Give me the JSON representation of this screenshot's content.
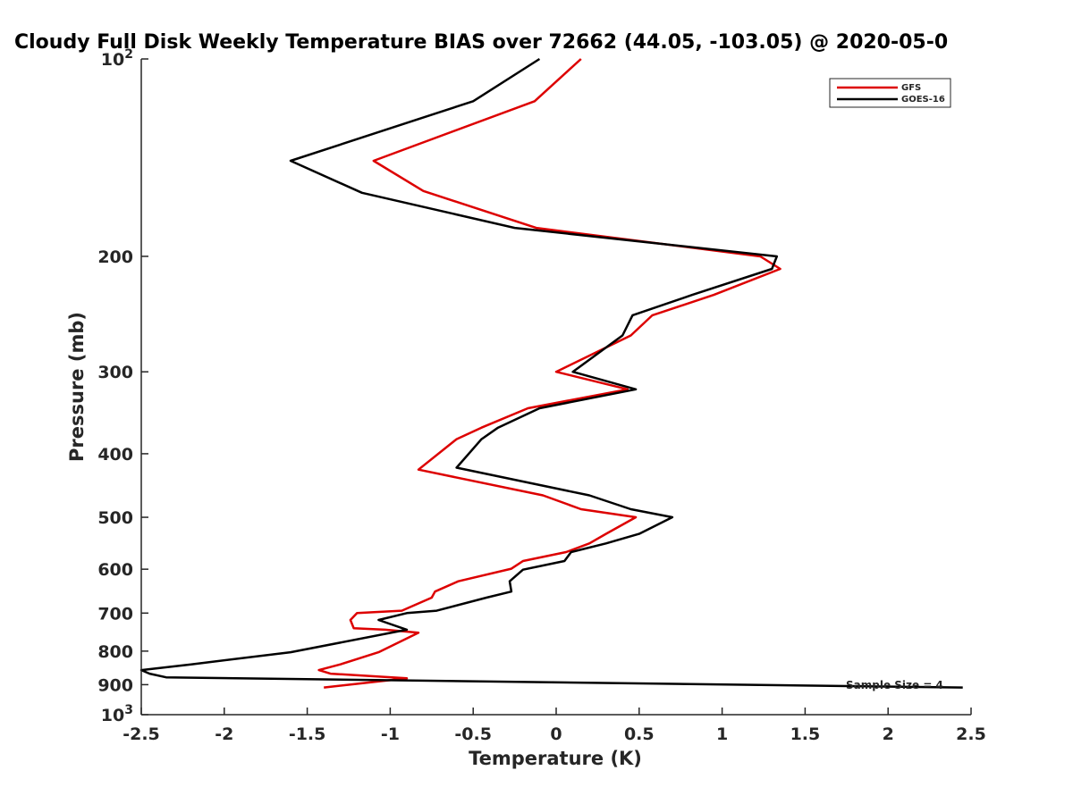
{
  "chart_data": {
    "type": "line",
    "title": "Cloudy Full Disk Weekly Temperature BIAS over 72662 (44.05, -103.05) @ 2020-05-0",
    "xlabel": "Temperature (K)",
    "ylabel": "Pressure (mb)",
    "xlim": [
      -2.5,
      2.5
    ],
    "ylim": [
      100,
      1000
    ],
    "y_scale": "log",
    "y_reversed": true,
    "grid": false,
    "legend_position": "top-right",
    "x_ticks": [
      "-2.5",
      "-2",
      "-1.5",
      "-1",
      "-0.5",
      "0",
      "0.5",
      "1",
      "1.5",
      "2",
      "2.5"
    ],
    "x_tick_values": [
      -2.5,
      -2,
      -1.5,
      -1,
      -0.5,
      0,
      0.5,
      1,
      1.5,
      2,
      2.5
    ],
    "y_ticks": [
      {
        "value": 100,
        "base": "10",
        "exp": "2"
      },
      {
        "value": 200,
        "label": "200"
      },
      {
        "value": 300,
        "label": "300"
      },
      {
        "value": 400,
        "label": "400"
      },
      {
        "value": 500,
        "label": "500"
      },
      {
        "value": 600,
        "label": "600"
      },
      {
        "value": 700,
        "label": "700"
      },
      {
        "value": 800,
        "label": "800"
      },
      {
        "value": 900,
        "label": "900"
      },
      {
        "value": 1000,
        "base": "10",
        "exp": "3"
      }
    ],
    "annotation": "Sample Size = 4",
    "series": [
      {
        "name": "GFS",
        "color": "#dd0000",
        "points": [
          [
            0.15,
            100
          ],
          [
            -0.13,
            116
          ],
          [
            -1.1,
            143
          ],
          [
            -0.8,
            159
          ],
          [
            -0.12,
            181
          ],
          [
            1.23,
            200
          ],
          [
            1.35,
            209
          ],
          [
            0.95,
            229
          ],
          [
            0.58,
            246
          ],
          [
            0.45,
            264
          ],
          [
            0.0,
            300
          ],
          [
            0.43,
            319
          ],
          [
            -0.17,
            341
          ],
          [
            -0.45,
            365
          ],
          [
            -0.6,
            380
          ],
          [
            -0.83,
            423
          ],
          [
            -0.08,
            463
          ],
          [
            0.15,
            486
          ],
          [
            0.48,
            500
          ],
          [
            0.3,
            530
          ],
          [
            0.2,
            548
          ],
          [
            0.06,
            565
          ],
          [
            -0.2,
            583
          ],
          [
            -0.27,
            599
          ],
          [
            -0.59,
            626
          ],
          [
            -0.73,
            649
          ],
          [
            -0.75,
            663
          ],
          [
            -0.93,
            694
          ],
          [
            -1.2,
            700
          ],
          [
            -1.24,
            717
          ],
          [
            -1.22,
            738
          ],
          [
            -1.03,
            742
          ],
          [
            -0.83,
            750
          ],
          [
            -1.07,
            803
          ],
          [
            -1.3,
            838
          ],
          [
            -1.43,
            855
          ],
          [
            -1.36,
            866
          ],
          [
            -0.9,
            880
          ],
          [
            -1.4,
            909
          ]
        ]
      },
      {
        "name": "GOES-16",
        "color": "#000000",
        "points": [
          [
            -0.1,
            100
          ],
          [
            -0.5,
            116
          ],
          [
            -1.6,
            143
          ],
          [
            -1.17,
            160
          ],
          [
            -0.25,
            181
          ],
          [
            1.33,
            200
          ],
          [
            1.3,
            209
          ],
          [
            0.82,
            229
          ],
          [
            0.46,
            246
          ],
          [
            0.4,
            264
          ],
          [
            0.1,
            300
          ],
          [
            0.48,
            319
          ],
          [
            -0.1,
            341
          ],
          [
            -0.35,
            365
          ],
          [
            -0.45,
            380
          ],
          [
            -0.6,
            420
          ],
          [
            0.2,
            463
          ],
          [
            0.45,
            486
          ],
          [
            0.7,
            500
          ],
          [
            0.5,
            530
          ],
          [
            0.3,
            548
          ],
          [
            0.09,
            565
          ],
          [
            0.05,
            583
          ],
          [
            -0.2,
            601
          ],
          [
            -0.28,
            626
          ],
          [
            -0.27,
            649
          ],
          [
            -0.42,
            663
          ],
          [
            -0.72,
            694
          ],
          [
            -0.9,
            700
          ],
          [
            -1.07,
            717
          ],
          [
            -0.9,
            742
          ],
          [
            -1.6,
            803
          ],
          [
            -2.2,
            838
          ],
          [
            -2.5,
            855
          ],
          [
            -2.45,
            866
          ],
          [
            -2.35,
            877
          ],
          [
            2.45,
            909
          ]
        ]
      }
    ]
  }
}
